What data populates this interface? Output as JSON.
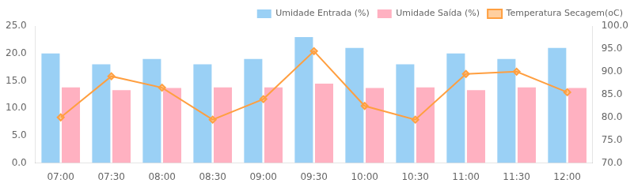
{
  "chart_data": {
    "type": "bar",
    "categories": [
      "07:00",
      "07:30",
      "08:00",
      "08:30",
      "09:00",
      "09:30",
      "10:00",
      "10:30",
      "11:00",
      "11:30",
      "12:00"
    ],
    "series": [
      {
        "name": "Umidade Entrada (%)",
        "values": [
          20.0,
          18.0,
          19.0,
          18.0,
          19.0,
          23.0,
          21.0,
          18.0,
          20.0,
          19.0,
          21.0
        ]
      },
      {
        "name": "Umidade Saída (%)",
        "values": [
          13.8,
          13.3,
          13.7,
          13.8,
          13.8,
          14.5,
          13.7,
          13.8,
          13.3,
          13.8,
          13.7
        ]
      },
      {
        "name": "Temperatura Secagem(oC)",
        "type": "line",
        "axis": "y2",
        "marker": "diamond",
        "values": [
          80.0,
          89.0,
          86.5,
          79.5,
          84.0,
          94.5,
          82.5,
          79.5,
          89.5,
          90.0,
          85.5
        ]
      }
    ],
    "ylim": [
      0,
      25
    ],
    "yticks": [
      {
        "value": 0,
        "label": "0.0"
      },
      {
        "value": 5,
        "label": "5.0"
      },
      {
        "value": 10,
        "label": "10.0"
      },
      {
        "value": 15,
        "label": "15.0"
      },
      {
        "value": 20,
        "label": "20.0"
      },
      {
        "value": 25,
        "label": "25.0"
      }
    ],
    "y2lim": [
      70,
      100
    ],
    "y2ticks": [
      {
        "value": 70,
        "label": "70.0"
      },
      {
        "value": 75,
        "label": "75.0"
      },
      {
        "value": 80,
        "label": "80.0"
      },
      {
        "value": 85,
        "label": "85.0"
      },
      {
        "value": 90,
        "label": "90.0"
      },
      {
        "value": 95,
        "label": "95.0"
      },
      {
        "value": 100,
        "label": "100.0"
      }
    ],
    "grid": false,
    "legend": "upper right"
  }
}
